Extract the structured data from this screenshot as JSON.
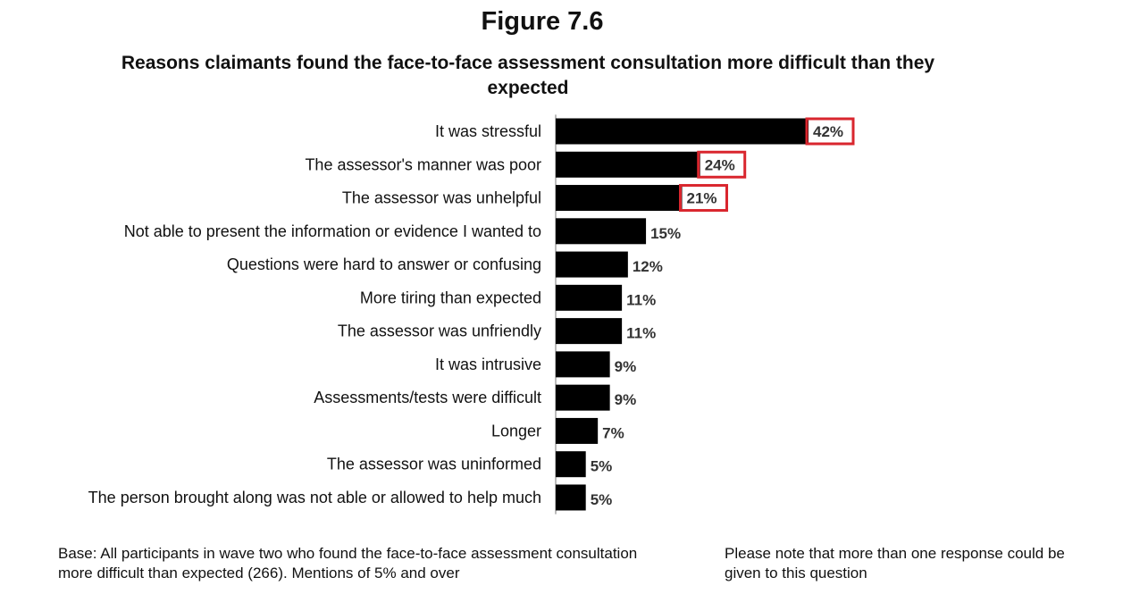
{
  "figure_number": "Figure 7.6",
  "chart_data": {
    "type": "bar",
    "orientation": "horizontal",
    "title": "Reasons claimants found the face-to-face assessment consultation more difficult than they expected",
    "categories": [
      "It was stressful",
      "The assessor's manner was poor",
      "The assessor was unhelpful",
      "Not able to present the information or evidence I wanted to",
      "Questions were hard to answer or confusing",
      "More tiring than expected",
      "The assessor was unfriendly",
      "It was intrusive",
      "Assessments/tests were difficult",
      "Longer",
      "The assessor was uninformed",
      "The person brought along was not able or allowed to help much"
    ],
    "values": [
      42,
      24,
      21,
      15,
      12,
      11,
      11,
      9,
      9,
      7,
      5,
      5
    ],
    "value_labels": [
      "42%",
      "24%",
      "21%",
      "15%",
      "12%",
      "11%",
      "11%",
      "9%",
      "9%",
      "7%",
      "5%",
      "5%"
    ],
    "highlighted": [
      true,
      true,
      true,
      false,
      false,
      false,
      false,
      false,
      false,
      false,
      false,
      false
    ],
    "xlim": [
      0,
      42
    ],
    "xlabel": "",
    "ylabel": "",
    "grid": false,
    "legend": "none",
    "bar_color": "#000000",
    "highlight_color": "#d9262e"
  },
  "footer": {
    "base_note": "Base: All participants in wave two who found the face-to-face assessment consultation more difficult than expected (266). Mentions of 5% and over",
    "response_note": "Please note that more than one response could be given to this question"
  }
}
